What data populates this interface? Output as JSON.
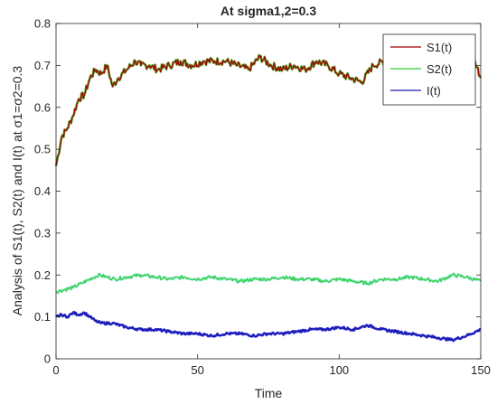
{
  "chart_data": {
    "type": "line",
    "title": "At sigma1,2=0.3",
    "xlabel": "Time",
    "ylabel": "Analysis of S1(t), S2(t) and I(t) at σ1=σ2=0.3",
    "xlim": [
      0,
      150
    ],
    "ylim": [
      0,
      0.8
    ],
    "xticks": [
      "0",
      "50",
      "100",
      "150"
    ],
    "yticks": [
      "0",
      "0.1",
      "0.2",
      "0.3",
      "0.4",
      "0.5",
      "0.6",
      "0.7",
      "0.8"
    ],
    "grid": false,
    "legend_position": "top-right",
    "series": [
      {
        "name": "S1(t)",
        "color": "#a00000",
        "highlight": "#5a9a2a",
        "x": [
          0,
          2,
          4,
          6,
          8,
          10,
          12,
          14,
          16,
          18,
          20,
          22,
          25,
          28,
          30,
          33,
          36,
          40,
          44,
          48,
          52,
          56,
          60,
          64,
          68,
          72,
          76,
          80,
          84,
          88,
          92,
          96,
          100,
          104,
          108,
          112,
          116,
          120,
          124,
          128,
          132,
          136,
          140,
          144,
          148,
          150
        ],
        "y": [
          0.46,
          0.53,
          0.55,
          0.58,
          0.62,
          0.63,
          0.67,
          0.69,
          0.68,
          0.7,
          0.65,
          0.67,
          0.69,
          0.71,
          0.7,
          0.7,
          0.69,
          0.7,
          0.71,
          0.7,
          0.71,
          0.71,
          0.71,
          0.7,
          0.69,
          0.72,
          0.7,
          0.69,
          0.7,
          0.69,
          0.71,
          0.7,
          0.68,
          0.67,
          0.66,
          0.7,
          0.71,
          0.7,
          0.69,
          0.7,
          0.68,
          0.69,
          0.7,
          0.69,
          0.71,
          0.67
        ]
      },
      {
        "name": "S2(t)",
        "color": "#33cc33",
        "highlight": "#8ce8d8",
        "x": [
          0,
          3,
          6,
          9,
          12,
          15,
          18,
          21,
          25,
          30,
          35,
          40,
          45,
          50,
          55,
          60,
          65,
          70,
          75,
          80,
          85,
          90,
          95,
          100,
          105,
          110,
          115,
          120,
          125,
          130,
          135,
          140,
          145,
          150
        ],
        "y": [
          0.16,
          0.165,
          0.17,
          0.18,
          0.19,
          0.2,
          0.195,
          0.19,
          0.195,
          0.2,
          0.195,
          0.19,
          0.195,
          0.19,
          0.195,
          0.19,
          0.185,
          0.19,
          0.19,
          0.195,
          0.19,
          0.19,
          0.185,
          0.19,
          0.185,
          0.18,
          0.19,
          0.19,
          0.195,
          0.19,
          0.185,
          0.2,
          0.195,
          0.185
        ]
      },
      {
        "name": "I(t)",
        "color": "#1a1aa6",
        "highlight": "#2a2ad8",
        "x": [
          0,
          2,
          4,
          6,
          8,
          10,
          12,
          14,
          16,
          20,
          25,
          30,
          35,
          40,
          45,
          50,
          55,
          60,
          65,
          70,
          75,
          80,
          85,
          90,
          95,
          100,
          105,
          110,
          115,
          120,
          125,
          130,
          135,
          140,
          145,
          150
        ],
        "y": [
          0.1,
          0.105,
          0.1,
          0.11,
          0.105,
          0.11,
          0.1,
          0.09,
          0.085,
          0.085,
          0.075,
          0.07,
          0.07,
          0.065,
          0.06,
          0.06,
          0.055,
          0.06,
          0.06,
          0.055,
          0.06,
          0.06,
          0.065,
          0.07,
          0.07,
          0.075,
          0.07,
          0.08,
          0.07,
          0.065,
          0.06,
          0.055,
          0.05,
          0.045,
          0.055,
          0.07
        ]
      }
    ]
  }
}
